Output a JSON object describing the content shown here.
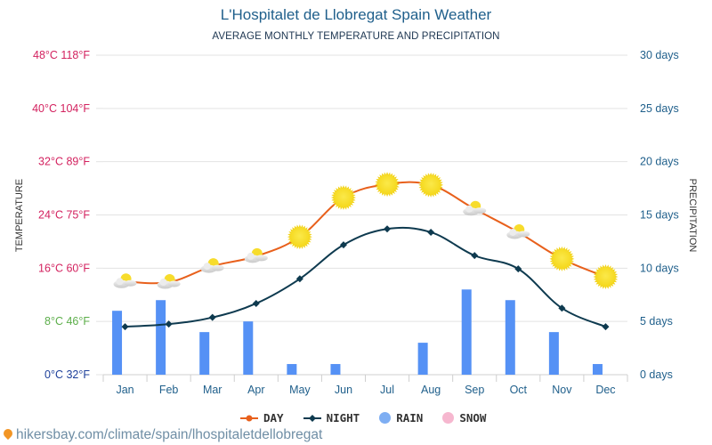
{
  "header": {
    "title": "L'Hospitalet de Llobregat Spain Weather",
    "subtitle": "AVERAGE MONTHLY TEMPERATURE AND PRECIPITATION"
  },
  "footer": {
    "source": "hikersbay.com/climate/spain/lhospitaletdellobregat"
  },
  "colors": {
    "day": "#e8601c",
    "night": "#0e3a4f",
    "rain": "#5591f5",
    "snow": "#f6b7cf",
    "temp_label": "#d3225f",
    "temp_label_8": "#5cae4a",
    "temp_label_0": "#1d3f9a",
    "right_label": "#1f5f8b"
  },
  "chart_data": {
    "type": "line",
    "title": "L'Hospitalet de Llobregat Spain Weather",
    "subtitle": "AVERAGE MONTHLY TEMPERATURE AND PRECIPITATION",
    "categories": [
      "Jan",
      "Feb",
      "Mar",
      "Apr",
      "May",
      "Jun",
      "Jul",
      "Aug",
      "Sep",
      "Oct",
      "Nov",
      "Dec"
    ],
    "ylabel": "TEMPERATURE",
    "y2label": "PRECIPITATION",
    "ylim": [
      0,
      48
    ],
    "y2lim": [
      0,
      30
    ],
    "grid": true,
    "legend_position": "bottom-center",
    "y_ticks": [
      {
        "value": 0,
        "label": "0°C 32°F"
      },
      {
        "value": 8,
        "label": "8°C 46°F"
      },
      {
        "value": 16,
        "label": "16°C 60°F"
      },
      {
        "value": 24,
        "label": "24°C 75°F"
      },
      {
        "value": 32,
        "label": "32°C 89°F"
      },
      {
        "value": 40,
        "label": "40°C 104°F"
      },
      {
        "value": 48,
        "label": "48°C 118°F"
      }
    ],
    "y2_ticks": [
      {
        "value": 0,
        "label": "0 days"
      },
      {
        "value": 5,
        "label": "5 days"
      },
      {
        "value": 10,
        "label": "10 days"
      },
      {
        "value": 15,
        "label": "15 days"
      },
      {
        "value": 20,
        "label": "20 days"
      },
      {
        "value": 25,
        "label": "25 days"
      },
      {
        "value": 30,
        "label": "30 days"
      }
    ],
    "series": [
      {
        "name": "DAY",
        "type": "line",
        "axis": "temperature",
        "values": [
          14.0,
          13.9,
          16.3,
          17.8,
          20.7,
          26.6,
          28.6,
          28.5,
          24.9,
          21.4,
          17.4,
          14.7
        ]
      },
      {
        "name": "NIGHT",
        "type": "line",
        "axis": "temperature",
        "values": [
          7.2,
          7.6,
          8.6,
          10.7,
          14.4,
          19.5,
          21.9,
          21.4,
          17.9,
          15.9,
          10.0,
          7.2
        ]
      },
      {
        "name": "RAIN",
        "type": "bar",
        "axis": "precipitation",
        "values": [
          6,
          7,
          4,
          5,
          1,
          1,
          0,
          3,
          8,
          7,
          4,
          1
        ]
      },
      {
        "name": "SNOW",
        "type": "bar",
        "axis": "precipitation",
        "values": [
          0,
          0,
          0,
          0,
          0,
          0,
          0,
          0,
          0,
          0,
          0,
          0
        ]
      }
    ],
    "day_icons": [
      "cloud-sun",
      "cloud-sun",
      "cloud-sun",
      "cloud-sun",
      "sun",
      "sun",
      "sun",
      "sun",
      "cloud-sun",
      "cloud-sun",
      "sun",
      "sun"
    ]
  },
  "legend": [
    {
      "label": "DAY",
      "key": "day"
    },
    {
      "label": "NIGHT",
      "key": "night"
    },
    {
      "label": "RAIN",
      "key": "rain"
    },
    {
      "label": "SNOW",
      "key": "snow"
    }
  ]
}
